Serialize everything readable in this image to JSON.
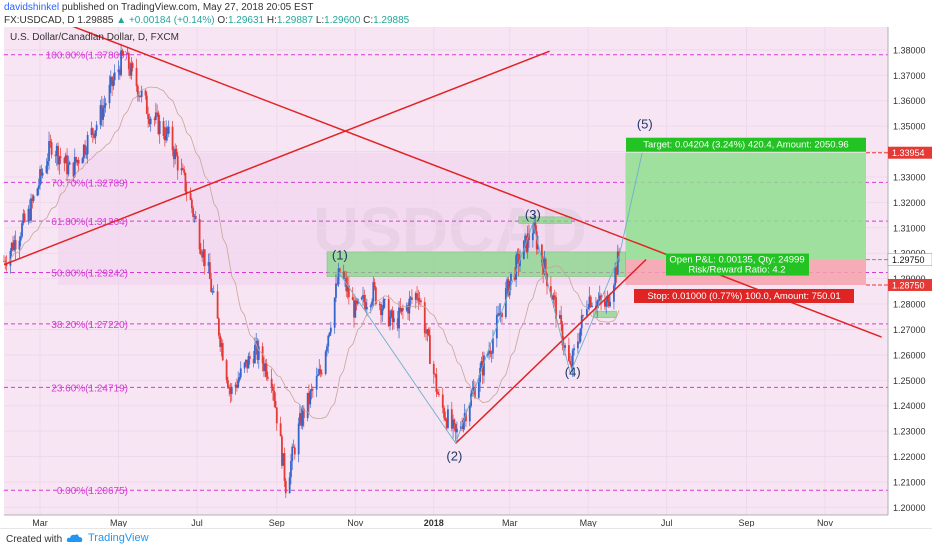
{
  "header": {
    "author": "davidshinkel",
    "published_text": "published on TradingView.com, May 27, 2018 20:05 EST",
    "symbol": "FX:USDCAD, D",
    "last": "1.29885",
    "change_arrow": "▲",
    "change": "+0.00184 (+0.14%)",
    "open_label": "O:",
    "open": "1.29631",
    "high_label": "H:",
    "high": "1.29887",
    "low_label": "L:",
    "low": "1.29600",
    "close_label": "C:",
    "close": "1.29885"
  },
  "footer": {
    "created_with": "Created with",
    "brand": "TradingView"
  },
  "chart_data": {
    "type": "candlestick",
    "title": "U.S. Dollar/Canadian Dollar, D, FXCM",
    "watermark": "USDCAD",
    "ylim": [
      1.197,
      1.389
    ],
    "y_ticks": [
      1.38,
      1.37,
      1.36,
      1.35,
      1.34,
      1.33,
      1.32,
      1.31,
      1.3,
      1.29,
      1.28,
      1.27,
      1.26,
      1.25,
      1.24,
      1.23,
      1.22,
      1.21,
      1.2
    ],
    "y_tick_labels": [
      "1.38000",
      "1.37000",
      "1.36000",
      "1.35000",
      "1.34000",
      "1.33000",
      "1.32000",
      "1.31000",
      "1.30000",
      "1.29000",
      "1.28000",
      "1.27000",
      "1.26000",
      "1.25000",
      "1.24000",
      "1.23000",
      "1.22000",
      "1.21000",
      "1.20000"
    ],
    "x_tick_labels": [
      "Mar",
      "May",
      "Jul",
      "Sep",
      "Nov",
      "2018",
      "Mar",
      "May",
      "Jul",
      "Sep",
      "Nov"
    ],
    "x_tick_dates": [
      "2017-03-01",
      "2017-05-01",
      "2017-07-01",
      "2017-09-01",
      "2017-11-01",
      "2018-01-01",
      "2018-03-01",
      "2018-05-01",
      "2018-07-01",
      "2018-09-01",
      "2018-11-01"
    ],
    "x_range": [
      "2017-02-01",
      "2018-12-20"
    ],
    "price_markers": [
      {
        "value": 1.33954,
        "label": "1.33954",
        "color": "#e53935"
      },
      {
        "value": 1.2975,
        "label": "1.29750",
        "color": "#ffffff"
      },
      {
        "value": 1.2875,
        "label": "1.28750",
        "color": "#e53935"
      }
    ],
    "fibonacci": [
      {
        "level": "100.00%",
        "price": 1.37809,
        "label": "100.00%(1.37809)"
      },
      {
        "level": "70.70%",
        "price": 1.32789,
        "label": "70.70%(1.32789)"
      },
      {
        "level": "61.80%",
        "price": 1.31264,
        "label": "61.80%(1.31264)"
      },
      {
        "level": "50.00%",
        "price": 1.29242,
        "label": "50.00%(1.29242)"
      },
      {
        "level": "38.20%",
        "price": 1.2722,
        "label": "38.20%(1.27220)"
      },
      {
        "level": "23.60%",
        "price": 1.24719,
        "label": "23.60%(1.24719)"
      },
      {
        "level": "0.00%",
        "price": 1.20675,
        "label": "0.00%(1.20675)"
      }
    ],
    "wave_labels": [
      {
        "label": "(1)",
        "date": "2017-10-20",
        "price": 1.2975
      },
      {
        "label": "(2)",
        "date": "2018-01-17",
        "price": 1.2185
      },
      {
        "label": "(3)",
        "date": "2018-03-19",
        "price": 1.3135
      },
      {
        "label": "(4)",
        "date": "2018-04-19",
        "price": 1.2515
      },
      {
        "label": "(5)",
        "date": "2018-06-14",
        "price": 1.349
      }
    ],
    "wave_path": [
      {
        "date": "2017-10-19",
        "price": 1.2925
      },
      {
        "date": "2018-01-18",
        "price": 1.2252
      },
      {
        "date": "2018-03-19",
        "price": 1.3118
      },
      {
        "date": "2018-04-17",
        "price": 1.2528
      },
      {
        "date": "2018-05-25",
        "price": 1.2988
      },
      {
        "date": "2018-06-12",
        "price": 1.3395
      }
    ],
    "trendlines": [
      {
        "from": {
          "date": "2017-03-02",
          "price": 1.394
        },
        "to": {
          "date": "2018-12-15",
          "price": 1.267
        }
      },
      {
        "from": {
          "date": "2017-02-01",
          "price": 1.2955
        },
        "to": {
          "date": "2018-04-01",
          "price": 1.3795
        }
      },
      {
        "from": {
          "date": "2018-01-18",
          "price": 1.2252
        },
        "to": {
          "date": "2018-06-15",
          "price": 1.2975
        }
      }
    ],
    "position": {
      "entry": 1.2975,
      "target": 1.33954,
      "stop": 1.2875,
      "target_label": "Target: 0.04204 (3.24%) 420.4, Amount: 2050.96",
      "stop_label": "Stop: 0.01000 (0.77%) 100.0, Amount: 750.01",
      "pnl_label": "Open P&L: 0.00135, Qty: 24999",
      "rr_label": "Risk/Reward Ratio: 4.2"
    },
    "zones": [
      {
        "from": "2017-10-10",
        "to": "2018-05-30",
        "top": 1.3005,
        "bottom": 1.2908
      },
      {
        "from": "2018-03-08",
        "to": "2018-04-18",
        "top": 1.3143,
        "bottom": 1.3117
      },
      {
        "from": "2018-05-05",
        "to": "2018-05-23",
        "top": 1.2772,
        "bottom": 1.2746
      }
    ],
    "last_price": 1.29885,
    "anchors": [
      {
        "date": "2017-02-01",
        "price": 1.297
      },
      {
        "date": "2017-02-20",
        "price": 1.315
      },
      {
        "date": "2017-03-10",
        "price": 1.343
      },
      {
        "date": "2017-03-25",
        "price": 1.332
      },
      {
        "date": "2017-04-15",
        "price": 1.352
      },
      {
        "date": "2017-05-05",
        "price": 1.378
      },
      {
        "date": "2017-05-25",
        "price": 1.355
      },
      {
        "date": "2017-06-10",
        "price": 1.345
      },
      {
        "date": "2017-06-25",
        "price": 1.322
      },
      {
        "date": "2017-07-10",
        "price": 1.292
      },
      {
        "date": "2017-07-27",
        "price": 1.245
      },
      {
        "date": "2017-08-15",
        "price": 1.262
      },
      {
        "date": "2017-08-28",
        "price": 1.252
      },
      {
        "date": "2017-09-08",
        "price": 1.209
      },
      {
        "date": "2017-09-20",
        "price": 1.235
      },
      {
        "date": "2017-10-05",
        "price": 1.253
      },
      {
        "date": "2017-10-20",
        "price": 1.293
      },
      {
        "date": "2017-11-01",
        "price": 1.277
      },
      {
        "date": "2017-11-15",
        "price": 1.285
      },
      {
        "date": "2017-12-01",
        "price": 1.272
      },
      {
        "date": "2017-12-20",
        "price": 1.285
      },
      {
        "date": "2018-01-05",
        "price": 1.242
      },
      {
        "date": "2018-01-18",
        "price": 1.228
      },
      {
        "date": "2018-02-01",
        "price": 1.246
      },
      {
        "date": "2018-02-15",
        "price": 1.265
      },
      {
        "date": "2018-03-01",
        "price": 1.289
      },
      {
        "date": "2018-03-19",
        "price": 1.31
      },
      {
        "date": "2018-04-05",
        "price": 1.28
      },
      {
        "date": "2018-04-17",
        "price": 1.254
      },
      {
        "date": "2018-05-01",
        "price": 1.283
      },
      {
        "date": "2018-05-15",
        "price": 1.279
      },
      {
        "date": "2018-05-25",
        "price": 1.2988
      }
    ]
  }
}
